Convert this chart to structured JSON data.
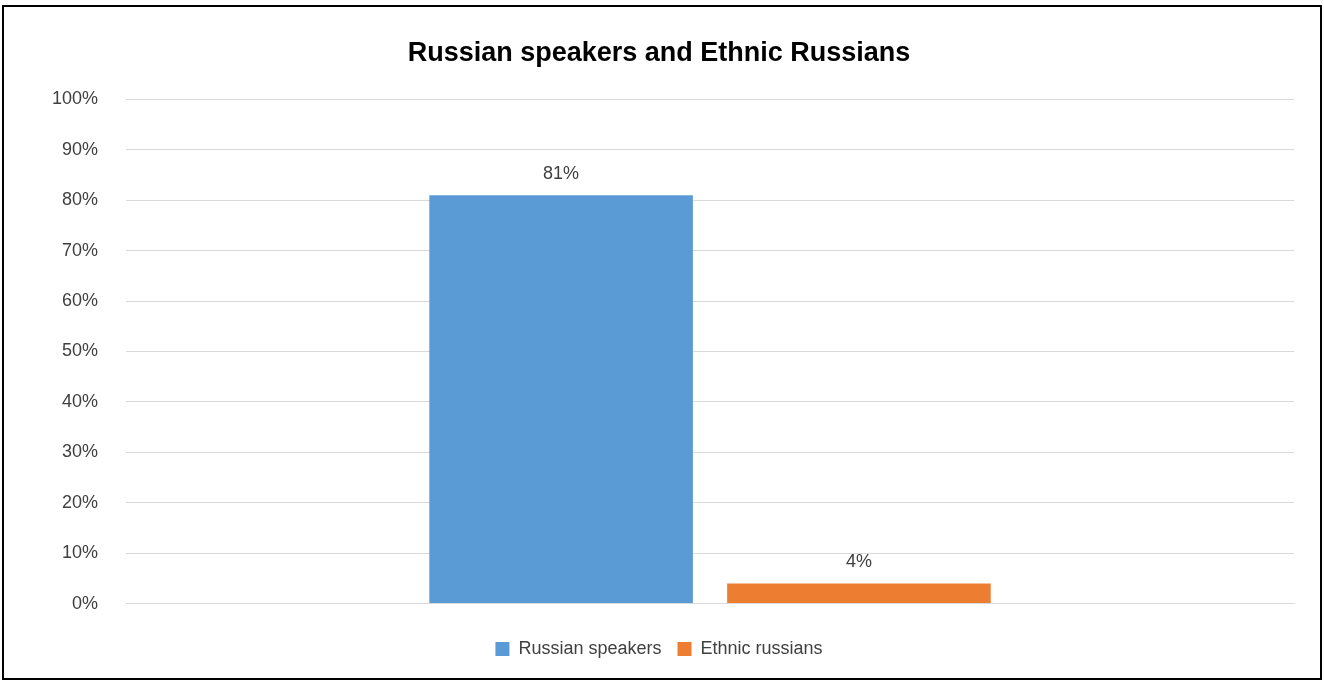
{
  "chart_data": {
    "type": "bar",
    "title": "Russian speakers and Ethnic Russians",
    "categories": [
      null
    ],
    "series": [
      {
        "name": "Russian speakers",
        "color": "#5b9bd5",
        "values": [
          81
        ],
        "value_labels": [
          "81%"
        ]
      },
      {
        "name": "Ethnic russians",
        "color": "#ed7d31",
        "values": [
          4
        ],
        "value_labels": [
          "4%"
        ]
      }
    ],
    "ylim": [
      0,
      100
    ],
    "yticks": [
      {
        "value": 0,
        "label": "0%"
      },
      {
        "value": 10,
        "label": "10%"
      },
      {
        "value": 20,
        "label": "20%"
      },
      {
        "value": 30,
        "label": "30%"
      },
      {
        "value": 40,
        "label": "40%"
      },
      {
        "value": 50,
        "label": "50%"
      },
      {
        "value": 60,
        "label": "60%"
      },
      {
        "value": 70,
        "label": "70%"
      },
      {
        "value": 80,
        "label": "80%"
      },
      {
        "value": 90,
        "label": "90%"
      },
      {
        "value": 100,
        "label": "100%"
      }
    ],
    "grid": "y",
    "legend": "bottom"
  }
}
